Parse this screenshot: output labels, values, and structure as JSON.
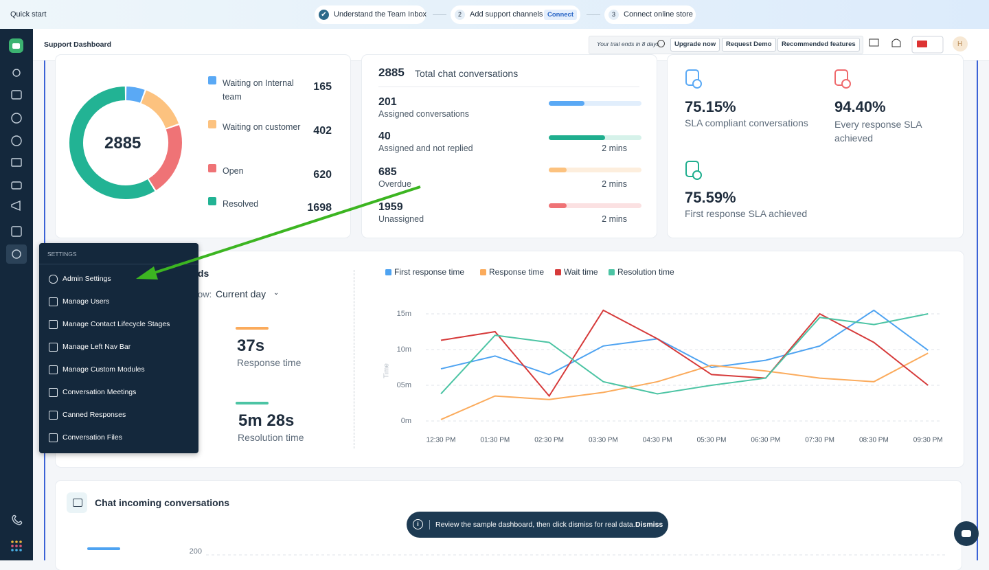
{
  "quick_start": {
    "label": "Quick start",
    "steps": [
      {
        "label": "Understand the Team Inbox"
      },
      {
        "number": "2",
        "label": "Add support channels",
        "action": "Connect"
      },
      {
        "number": "3",
        "label": "Connect online store"
      }
    ]
  },
  "header": {
    "title": "Support Dashboard",
    "trial": "Your trial ends in 8 days",
    "buttons": [
      "Upgrade now",
      "Request Demo",
      "Recommended features"
    ],
    "avatar": "H"
  },
  "status_card": {
    "total": 2885,
    "chart_data": {
      "type": "donut",
      "categories": [
        "Waiting on Internal team",
        "Waiting on customer",
        "Open",
        "Resolved"
      ],
      "values": [
        165,
        402,
        620,
        1698
      ],
      "colors": [
        "#5aa9f5",
        "#fcc27f",
        "#ef7376",
        "#22b394"
      ]
    }
  },
  "conversations_card": {
    "total": 2885,
    "total_label": "Total chat conversations",
    "rows": [
      {
        "value": 201,
        "label": "Assigned conversations"
      },
      {
        "value": 40,
        "label": "Assigned and not replied",
        "time": "2 mins"
      },
      {
        "value": 685,
        "label": "Overdue",
        "time": "2 mins"
      },
      {
        "value": 1959,
        "label": "Unassigned",
        "time": "2 mins"
      }
    ]
  },
  "sla_card": {
    "items": [
      {
        "value": "75.15%",
        "label": "SLA compliant conversations"
      },
      {
        "value": "94.40%",
        "label": "Every response SLA achieved"
      },
      {
        "value": "75.59%",
        "label": "First response SLA achieved"
      }
    ]
  },
  "response_card": {
    "title": "ds",
    "show_label": "ow:",
    "period": "Current day",
    "metrics": [
      {
        "value": "37s",
        "label": "Response time"
      },
      {
        "value": "5m 28s",
        "label": "Resolution time"
      }
    ],
    "chart_data": {
      "type": "line",
      "y_label": "Time",
      "categories": [
        "12:30 PM",
        "01:30 PM",
        "02:30 PM",
        "03:30 PM",
        "04:30 PM",
        "05:30 PM",
        "06:30 PM",
        "07:30 PM",
        "08:30 PM",
        "09:30 PM"
      ],
      "ylim": [
        0,
        17
      ],
      "yticks": [
        {
          "value": 0,
          "label": "0m"
        },
        {
          "value": 5,
          "label": "05m"
        },
        {
          "value": 10,
          "label": "10m"
        },
        {
          "value": 15,
          "label": "15m"
        }
      ],
      "grid": true,
      "series": [
        {
          "name": "First response time",
          "color": "#4ea3f1",
          "values": [
            7.3,
            9.1,
            6.5,
            10.5,
            11.5,
            7.5,
            8.5,
            10.5,
            15.5,
            9.9
          ]
        },
        {
          "name": "Response time",
          "color": "#fbab5c",
          "values": [
            0.2,
            3.5,
            3.0,
            4.0,
            5.5,
            7.8,
            7.0,
            6.0,
            5.5,
            9.5
          ]
        },
        {
          "name": "Wait time",
          "color": "#d63a3a",
          "values": [
            11.3,
            12.5,
            3.5,
            15.5,
            11.5,
            6.5,
            6.0,
            15.0,
            11.0,
            5.0
          ]
        },
        {
          "name": "Resolution time",
          "color": "#4cc4a4",
          "values": [
            3.8,
            12.0,
            11.0,
            5.5,
            3.8,
            5.0,
            6.0,
            14.5,
            13.5,
            15.0
          ]
        }
      ]
    }
  },
  "settings_menu": {
    "heading": "SETTINGS",
    "items": [
      "Admin Settings",
      "Manage Users",
      "Manage Contact Lifecycle Stages",
      "Manage Left Nav Bar",
      "Manage Custom Modules",
      "Conversation Meetings",
      "Canned Responses",
      "Conversation Files"
    ]
  },
  "incoming_card": {
    "title": "Chat incoming conversations",
    "chart_data": {
      "type": "line",
      "yticks": [
        200
      ]
    }
  },
  "toast": {
    "message": "Review the sample dashboard, then click dismiss for real data.",
    "action": "Dismiss"
  }
}
